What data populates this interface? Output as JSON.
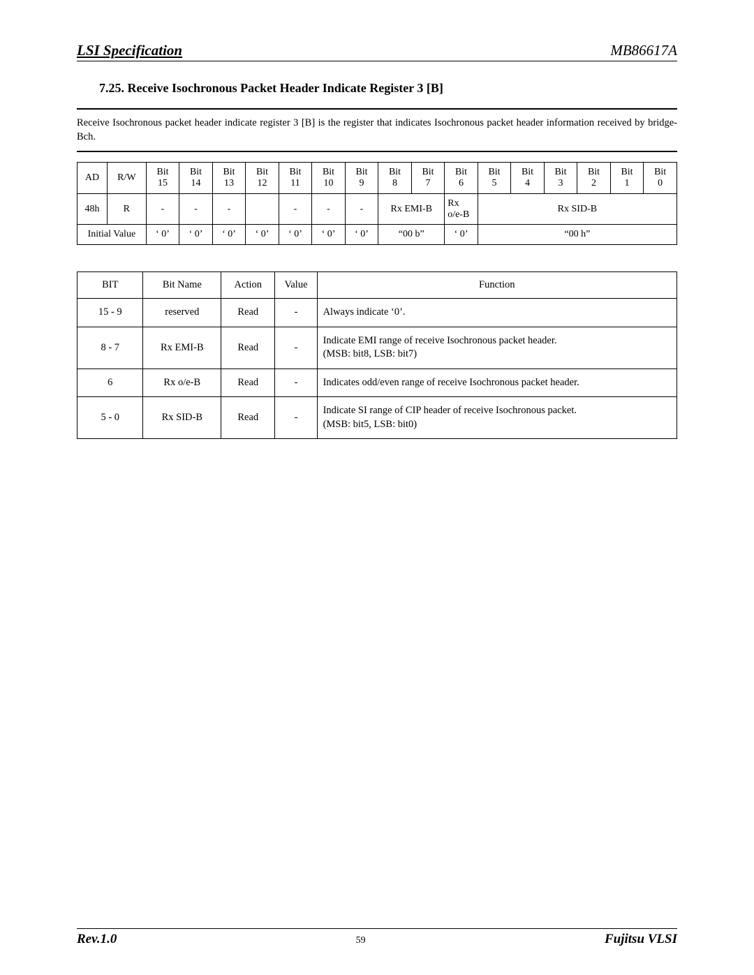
{
  "header": {
    "left": "LSI Specification",
    "right": "MB86617A"
  },
  "section_title": "7.25. Receive Isochronous Packet Header Indicate Register 3 [B]",
  "description": "Receive Isochronous packet header indicate register 3 [B] is the register that indicates Isochronous packet header information received by bridge-Bch.",
  "register_table": {
    "header_row": {
      "ad": "AD",
      "rw": "R/W",
      "bits": [
        "Bit 15",
        "Bit 14",
        "Bit 13",
        "Bit 12",
        "Bit 11",
        "Bit 10",
        "Bit 9",
        "Bit 8",
        "Bit 7",
        "Bit 6",
        "Bit 5",
        "Bit 4",
        "Bit 3",
        "Bit 2",
        "Bit 1",
        "Bit 0"
      ]
    },
    "data_row": {
      "ad": "48h",
      "rw": "R",
      "b15": "-",
      "b14": "-",
      "b13": "-",
      "b12": "",
      "b11": "-",
      "b10": "-",
      "b9": "-",
      "emi": "Rx EMI-B",
      "oe": "Rx o/e-B",
      "sid": "Rx SID-B"
    },
    "init_row": {
      "label": "Initial Value",
      "b15": "‘ 0’",
      "b14": "‘ 0’",
      "b13": "‘ 0’",
      "b12": "‘ 0’",
      "b11": "‘ 0’",
      "b10": "‘ 0’",
      "b9": "‘ 0’",
      "emi": "“00 b”",
      "oe": "‘ 0’",
      "sid": "“00 h”"
    }
  },
  "bits_table": {
    "header": {
      "bit": "BIT",
      "name": "Bit Name",
      "action": "Action",
      "value": "Value",
      "function": "Function"
    },
    "rows": [
      {
        "bit": "15 - 9",
        "name": "reserved",
        "action": "Read",
        "value": "-",
        "function": "Always indicate ‘0’."
      },
      {
        "bit": "8 - 7",
        "name": "Rx EMI-B",
        "action": "Read",
        "value": "-",
        "function": "Indicate EMI range of receive Isochronous packet header.\n(MSB: bit8, LSB: bit7)"
      },
      {
        "bit": "6",
        "name": "Rx o/e-B",
        "action": "Read",
        "value": "-",
        "function": "Indicates odd/even range of receive Isochronous packet header."
      },
      {
        "bit": "5 - 0",
        "name": "Rx SID-B",
        "action": "Read",
        "value": "-",
        "function": "Indicate SI range of CIP header of receive Isochronous packet.\n(MSB: bit5, LSB: bit0)"
      }
    ]
  },
  "footer": {
    "rev": "Rev.1.0",
    "page": "59",
    "company": "Fujitsu VLSI"
  }
}
